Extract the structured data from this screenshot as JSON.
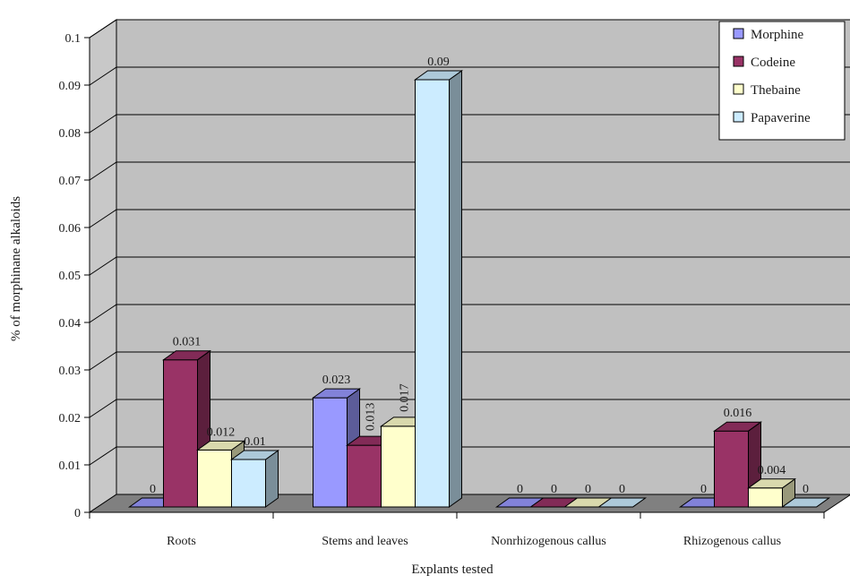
{
  "chart_data": {
    "type": "bar",
    "title": "",
    "xlabel": "Explants tested",
    "ylabel": "% of morphinane alkaloids",
    "ylim": [
      0,
      0.1
    ],
    "yticks": [
      "0",
      "0.01",
      "0.02",
      "0.03",
      "0.04",
      "0.05",
      "0.06",
      "0.07",
      "0.08",
      "0.09",
      "0.1"
    ],
    "grid": true,
    "legend_position": "top-right",
    "categories": [
      "Roots",
      "Stems and leaves",
      "Nonrhizogenous callus",
      "Rhizogenous callus"
    ],
    "series": [
      {
        "name": "Morphine",
        "color": "#9999ff",
        "values": [
          0,
          0.023,
          0,
          0
        ],
        "labels": [
          "0",
          "0.023",
          "0",
          "0"
        ]
      },
      {
        "name": "Codeine",
        "color": "#993366",
        "values": [
          0.031,
          0.013,
          0,
          0.016
        ],
        "labels": [
          "0.031",
          "0.013",
          "0",
          "0.016"
        ]
      },
      {
        "name": "Thebaine",
        "color": "#ffffcc",
        "values": [
          0.012,
          0.017,
          0,
          0.004
        ],
        "labels": [
          "0.012",
          "0.017",
          "0",
          "0.004"
        ]
      },
      {
        "name": "Papaverine",
        "color": "#ccecff",
        "values": [
          0.01,
          0.09,
          0,
          0
        ],
        "labels": [
          "0.01",
          "0.09",
          "0",
          "0"
        ]
      }
    ]
  }
}
